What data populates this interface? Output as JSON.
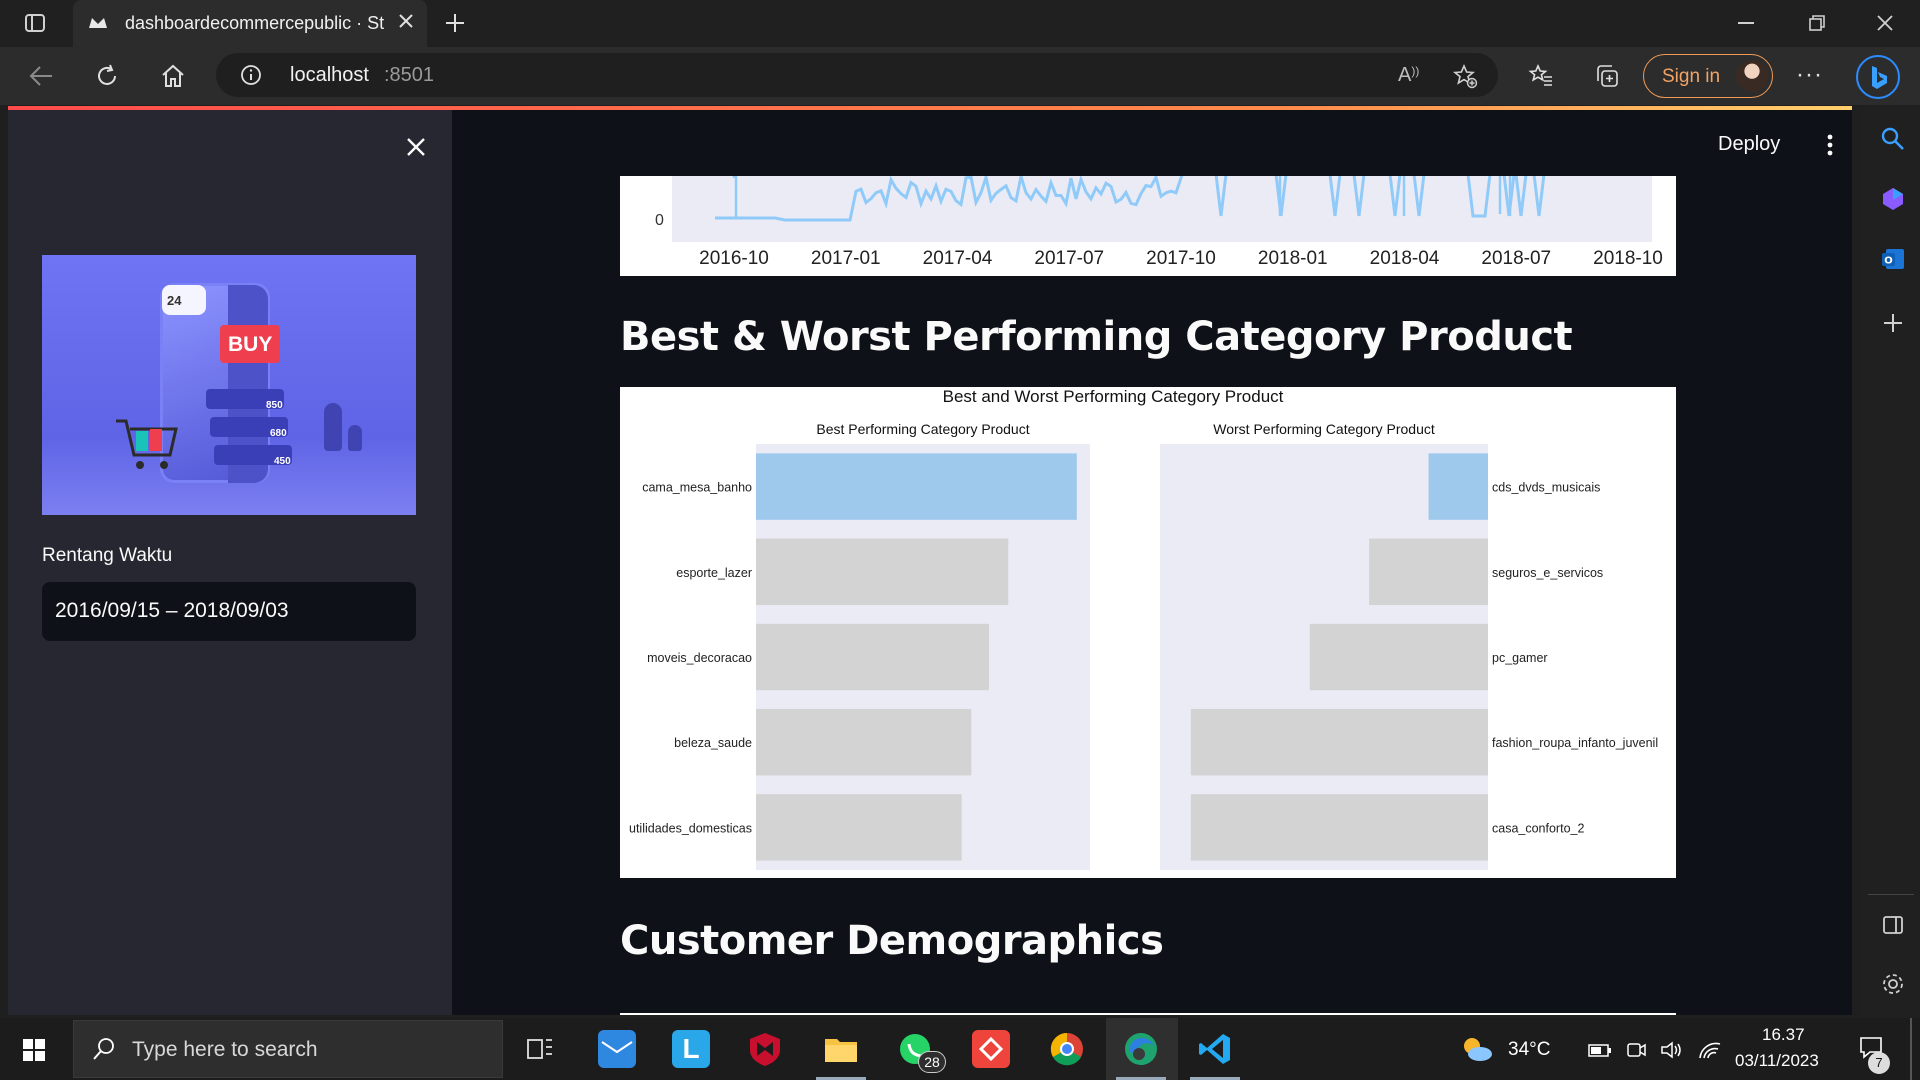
{
  "browser": {
    "tab_title": "dashboardecommercepublic · Str",
    "url_host": "localhost",
    "url_port": ":8501",
    "sign_in_label": "Sign in"
  },
  "app": {
    "deploy_label": "Deploy"
  },
  "sidebar": {
    "date_label": "Rentang Waktu",
    "date_value": "2016/09/15 – 2018/09/03",
    "hero": {
      "buy_label": "BUY",
      "badge_24": "24",
      "row_values": [
        "850",
        "680",
        "450"
      ]
    }
  },
  "timeseries_fragment": {
    "y_tick": "0",
    "x_ticks": [
      "2016-10",
      "2017-01",
      "2017-04",
      "2017-07",
      "2017-10",
      "2018-01",
      "2018-04",
      "2018-07",
      "2018-10"
    ],
    "line_color": "#90caf9"
  },
  "sections": {
    "category_heading": "Best & Worst Performing Category Product",
    "demographics_heading": "Customer Demographics"
  },
  "chart_data": {
    "type": "bar",
    "title": "Best and Worst Performing Category Product",
    "subplots": [
      {
        "title": "Best Performing Category Product",
        "orientation": "horizontal",
        "categories": [
          "cama_mesa_banho",
          "esporte_lazer",
          "moveis_decoracao",
          "beleza_saude",
          "utilidades_domesticas"
        ],
        "values": [
          3650,
          2870,
          2650,
          2450,
          2340
        ],
        "xlim": [
          0,
          3800
        ],
        "x_ticks": [
          "0",
          "500",
          "1000",
          "1500",
          "2000",
          "2500",
          "3000",
          "3500"
        ],
        "highlight_color": "#9ec9ed",
        "bar_color": "#d3d3d3",
        "background": "#ebebf5"
      },
      {
        "title": "Worst Performing Category Product",
        "orientation": "horizontal",
        "x_inverted": true,
        "categories": [
          "cds_dvds_musicais",
          "seguros_e_servicos",
          "pc_gamer",
          "fashion_roupa_infanto_juvenil",
          "casa_conforto_2"
        ],
        "values": [
          1,
          2,
          3,
          5,
          5
        ],
        "xlim": [
          5.25,
          0
        ],
        "x_ticks": [
          "5",
          "4",
          "3",
          "2",
          "1",
          "0"
        ],
        "highlight_color": "#9ec9ed",
        "bar_color": "#d3d3d3",
        "background": "#ebebf5"
      }
    ]
  },
  "taskbar": {
    "search_placeholder": "Type here to search",
    "whatsapp_badge": "28",
    "weather_temp": "34°C",
    "time": "16.37",
    "date": "03/11/2023",
    "notification_count": "7"
  }
}
